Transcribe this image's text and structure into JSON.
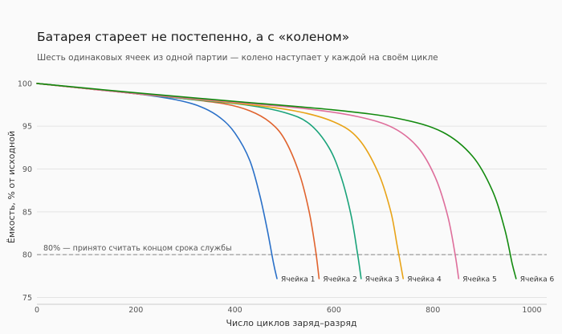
{
  "title": "Батарея стареет не постепенно, а с «коленом»",
  "subtitle": "Шесть одинаковых ячеек из одной партии — колено наступает у каждой на своём цикле",
  "chart_data": {
    "type": "line",
    "xlabel": "Число циклов заряд–разряд",
    "ylabel": "Ёмкость, % от исходной",
    "xlim": [
      0,
      1030
    ],
    "ylim": [
      74.2,
      101.3
    ],
    "xticks": [
      0,
      200,
      400,
      600,
      800,
      1000
    ],
    "yticks": [
      75,
      80,
      85,
      90,
      95,
      100
    ],
    "grid": "horizontal",
    "legend": "direct labels at line ends",
    "reference_line": {
      "y": 80,
      "label": "80% — принято считать концом срока службы",
      "color": "#888888"
    },
    "series": [
      {
        "name": "Ячейка 1",
        "color": "#2a70c8",
        "x": [
          0,
          100,
          200,
          280,
          330,
          370,
          400,
          430,
          450,
          465,
          478,
          485
        ],
        "y": [
          100,
          99.4,
          98.8,
          98.1,
          97.3,
          96.0,
          94.2,
          91.0,
          87.0,
          83.0,
          79.0,
          77.2
        ]
      },
      {
        "name": "Ячейка 2",
        "color": "#e0632e",
        "x": [
          0,
          100,
          200,
          300,
          380,
          430,
          470,
          500,
          530,
          550,
          563,
          570
        ],
        "y": [
          100,
          99.4,
          98.8,
          98.2,
          97.6,
          96.8,
          95.5,
          93.5,
          89.5,
          85.0,
          80.5,
          77.2
        ]
      },
      {
        "name": "Ячейка 3",
        "color": "#1aa37a",
        "x": [
          0,
          150,
          300,
          420,
          500,
          550,
          590,
          615,
          635,
          648,
          655
        ],
        "y": [
          100,
          99.1,
          98.2,
          97.5,
          96.6,
          95.3,
          92.5,
          89.0,
          84.5,
          80.0,
          77.2
        ]
      },
      {
        "name": "Ячейка 4",
        "color": "#e8a317",
        "x": [
          0,
          200,
          400,
          520,
          600,
          650,
          690,
          715,
          728,
          740
        ],
        "y": [
          100,
          98.8,
          97.7,
          96.8,
          95.5,
          93.5,
          89.5,
          85.0,
          81.0,
          77.2
        ]
      },
      {
        "name": "Ячейка 5",
        "color": "#de6e9b",
        "x": [
          0,
          200,
          400,
          550,
          650,
          720,
          770,
          805,
          830,
          845,
          852
        ],
        "y": [
          100,
          98.8,
          97.8,
          97.0,
          96.1,
          94.8,
          92.5,
          89.0,
          84.5,
          80.0,
          77.2
        ]
      },
      {
        "name": "Ячейка 6",
        "color": "#138a0f",
        "x": [
          0,
          200,
          400,
          600,
          730,
          820,
          880,
          920,
          945,
          960,
          968
        ],
        "y": [
          100,
          98.9,
          97.9,
          96.9,
          95.9,
          94.3,
          91.5,
          87.5,
          83.0,
          79.0,
          77.2
        ]
      }
    ]
  }
}
